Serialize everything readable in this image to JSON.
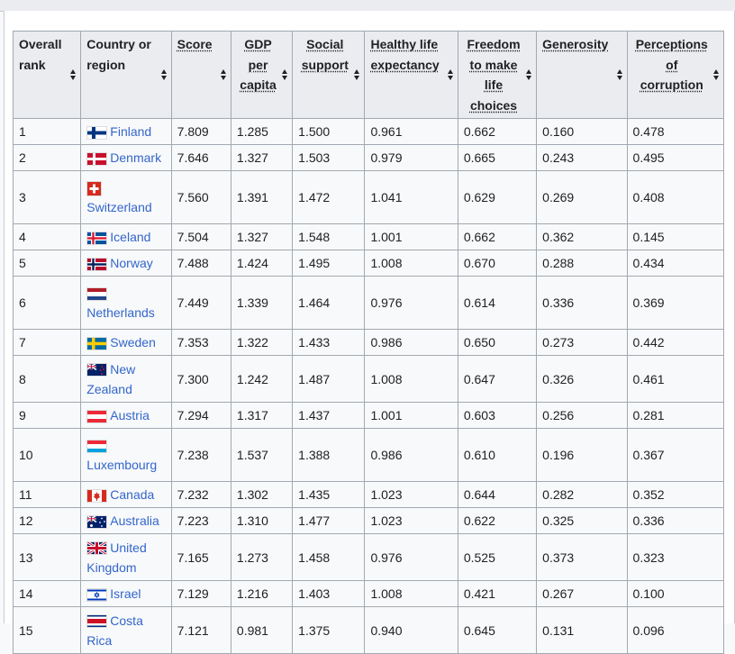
{
  "columns": [
    {
      "label": "Overall rank",
      "abbr": false
    },
    {
      "label": "Country or region",
      "abbr": false
    },
    {
      "label": "Score",
      "abbr": true
    },
    {
      "label": "GDP per capita",
      "abbr": true
    },
    {
      "label": "Social support",
      "abbr": true
    },
    {
      "label": "Healthy life expectancy",
      "abbr": true
    },
    {
      "label": "Freedom to make life choices",
      "abbr": true
    },
    {
      "label": "Generosity",
      "abbr": true
    },
    {
      "label": "Perceptions of corruption",
      "abbr": true
    }
  ],
  "rows": [
    {
      "rank": "1",
      "country": "Finland",
      "flag": "finland-flag-icon",
      "score": "7.809",
      "gdp": "1.285",
      "social": "1.500",
      "health": "0.961",
      "freedom": "0.662",
      "generosity": "0.160",
      "corruption": "0.478"
    },
    {
      "rank": "2",
      "country": "Denmark",
      "flag": "denmark-flag-icon",
      "score": "7.646",
      "gdp": "1.327",
      "social": "1.503",
      "health": "0.979",
      "freedom": "0.665",
      "generosity": "0.243",
      "corruption": "0.495"
    },
    {
      "rank": "3",
      "country": "Switzerland",
      "flag": "switzerland-flag-icon",
      "score": "7.560",
      "gdp": "1.391",
      "social": "1.472",
      "health": "1.041",
      "freedom": "0.629",
      "generosity": "0.269",
      "corruption": "0.408"
    },
    {
      "rank": "4",
      "country": "Iceland",
      "flag": "iceland-flag-icon",
      "score": "7.504",
      "gdp": "1.327",
      "social": "1.548",
      "health": "1.001",
      "freedom": "0.662",
      "generosity": "0.362",
      "corruption": "0.145"
    },
    {
      "rank": "5",
      "country": "Norway",
      "flag": "norway-flag-icon",
      "score": "7.488",
      "gdp": "1.424",
      "social": "1.495",
      "health": "1.008",
      "freedom": "0.670",
      "generosity": "0.288",
      "corruption": "0.434"
    },
    {
      "rank": "6",
      "country": "Netherlands",
      "flag": "netherlands-flag-icon",
      "score": "7.449",
      "gdp": "1.339",
      "social": "1.464",
      "health": "0.976",
      "freedom": "0.614",
      "generosity": "0.336",
      "corruption": "0.369"
    },
    {
      "rank": "7",
      "country": "Sweden",
      "flag": "sweden-flag-icon",
      "score": "7.353",
      "gdp": "1.322",
      "social": "1.433",
      "health": "0.986",
      "freedom": "0.650",
      "generosity": "0.273",
      "corruption": "0.442"
    },
    {
      "rank": "8",
      "country": "New Zealand",
      "flag": "new-zealand-flag-icon",
      "score": "7.300",
      "gdp": "1.242",
      "social": "1.487",
      "health": "1.008",
      "freedom": "0.647",
      "generosity": "0.326",
      "corruption": "0.461"
    },
    {
      "rank": "9",
      "country": "Austria",
      "flag": "austria-flag-icon",
      "score": "7.294",
      "gdp": "1.317",
      "social": "1.437",
      "health": "1.001",
      "freedom": "0.603",
      "generosity": "0.256",
      "corruption": "0.281"
    },
    {
      "rank": "10",
      "country": "Luxembourg",
      "flag": "luxembourg-flag-icon",
      "score": "7.238",
      "gdp": "1.537",
      "social": "1.388",
      "health": "0.986",
      "freedom": "0.610",
      "generosity": "0.196",
      "corruption": "0.367"
    },
    {
      "rank": "11",
      "country": "Canada",
      "flag": "canada-flag-icon",
      "score": "7.232",
      "gdp": "1.302",
      "social": "1.435",
      "health": "1.023",
      "freedom": "0.644",
      "generosity": "0.282",
      "corruption": "0.352"
    },
    {
      "rank": "12",
      "country": "Australia",
      "flag": "australia-flag-icon",
      "score": "7.223",
      "gdp": "1.310",
      "social": "1.477",
      "health": "1.023",
      "freedom": "0.622",
      "generosity": "0.325",
      "corruption": "0.336"
    },
    {
      "rank": "13",
      "country": "United Kingdom",
      "flag": "united-kingdom-flag-icon",
      "score": "7.165",
      "gdp": "1.273",
      "social": "1.458",
      "health": "0.976",
      "freedom": "0.525",
      "generosity": "0.373",
      "corruption": "0.323"
    },
    {
      "rank": "14",
      "country": "Israel",
      "flag": "israel-flag-icon",
      "score": "7.129",
      "gdp": "1.216",
      "social": "1.403",
      "health": "1.008",
      "freedom": "0.421",
      "generosity": "0.267",
      "corruption": "0.100"
    },
    {
      "rank": "15",
      "country": "Costa Rica",
      "flag": "costa-rica-flag-icon",
      "score": "7.121",
      "gdp": "0.981",
      "social": "1.375",
      "health": "0.940",
      "freedom": "0.645",
      "generosity": "0.131",
      "corruption": "0.096"
    }
  ],
  "colors": {
    "link": "#3366cc",
    "header_bg": "#eaecf0",
    "border": "#a2a9b1",
    "cell_bg": "#f8f9fa"
  }
}
